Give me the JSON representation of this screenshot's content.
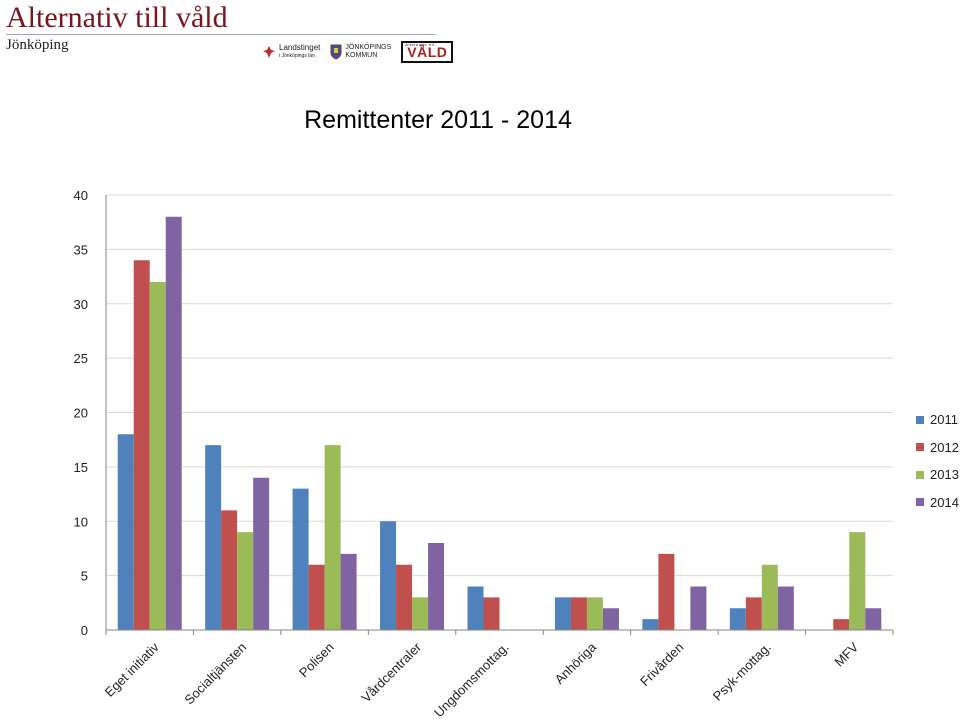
{
  "header": {
    "title": "Alternativ till våld",
    "city": "Jönköping",
    "logos": {
      "landstinget_name": "Landstinget",
      "landstinget_sub": "i Jönköpings län",
      "kommun_line1": "JÖNKÖPINGS",
      "kommun_line2": "KOMMUN",
      "vald_label": "VÅLD",
      "vald_small": "Alternativ till"
    }
  },
  "colors": {
    "2011": "#4f81bd",
    "2012": "#c0504d",
    "2013": "#9bbb59",
    "2014": "#8064a2",
    "grid": "#d9d9d9",
    "axis": "#868686"
  },
  "chart_data": {
    "type": "bar",
    "title": "Remittenter 2011 - 2014",
    "categories": [
      "Eget initiativ",
      "Socialtjänsten",
      "Polisen",
      "Vårdcentraler",
      "Ungdomsmottag.",
      "Anhöriga",
      "Frivården",
      "Psyk-mottag.",
      "MFV"
    ],
    "series": [
      {
        "name": "2011",
        "values": [
          18,
          17,
          13,
          10,
          4,
          3,
          1,
          2,
          0
        ]
      },
      {
        "name": "2012",
        "values": [
          34,
          11,
          6,
          6,
          3,
          3,
          7,
          3,
          1
        ]
      },
      {
        "name": "2013",
        "values": [
          32,
          9,
          17,
          3,
          0,
          3,
          0,
          6,
          9
        ]
      },
      {
        "name": "2014",
        "values": [
          38,
          14,
          7,
          8,
          0,
          2,
          4,
          4,
          2
        ]
      }
    ],
    "ylim": [
      0,
      40
    ],
    "yticks": [
      0,
      5,
      10,
      15,
      20,
      25,
      30,
      35,
      40
    ],
    "grid": true,
    "legend_position": "right"
  }
}
